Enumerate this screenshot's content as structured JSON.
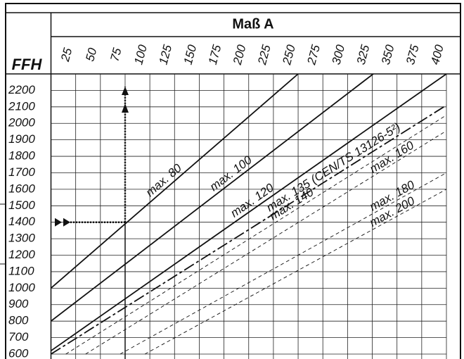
{
  "chart_data": {
    "type": "line",
    "title": "Maß A",
    "ylabel": "FFH",
    "xlim": [
      0,
      400
    ],
    "ylim": [
      600,
      2300
    ],
    "xticks": [
      25,
      50,
      75,
      100,
      125,
      150,
      175,
      200,
      225,
      250,
      275,
      300,
      325,
      350,
      375,
      400
    ],
    "yticks": [
      600,
      700,
      800,
      900,
      1000,
      1100,
      1200,
      1300,
      1400,
      1500,
      1600,
      1700,
      1800,
      1900,
      2000,
      2100,
      2200
    ],
    "grid": true,
    "example": {
      "x": 75,
      "y": 1400
    },
    "series": [
      {
        "name": "max. 80",
        "color": "#111111",
        "dash": "solid",
        "x": [
          0,
          250
        ],
        "values": [
          1000,
          2300
        ]
      },
      {
        "name": "max. 100",
        "color": "#111111",
        "dash": "solid",
        "x": [
          0,
          326
        ],
        "values": [
          800,
          2300
        ]
      },
      {
        "name": "max. 120",
        "color": "#111111",
        "dash": "solid",
        "x": [
          0,
          400
        ],
        "values": [
          620,
          2300
        ]
      },
      {
        "name": "max. 135 (CEN/TS 13126-5²)",
        "color": "#111111",
        "dash": "dashdot",
        "x": [
          0,
          400
        ],
        "values": [
          600,
          2110
        ]
      },
      {
        "name": "max. 140",
        "color": "#111111",
        "dash": "dashed",
        "x": [
          15,
          400
        ],
        "values": [
          600,
          2050
        ]
      },
      {
        "name": "max. 160",
        "color": "#111111",
        "dash": "dashed",
        "x": [
          35,
          400
        ],
        "values": [
          600,
          1955
        ]
      },
      {
        "name": "max. 180",
        "color": "#111111",
        "dash": "dashed",
        "x": [
          70,
          400
        ],
        "values": [
          600,
          1700
        ]
      },
      {
        "name": "max. 200",
        "color": "#111111",
        "dash": "dashed",
        "x": [
          95,
          400
        ],
        "values": [
          600,
          1600
        ]
      }
    ]
  }
}
